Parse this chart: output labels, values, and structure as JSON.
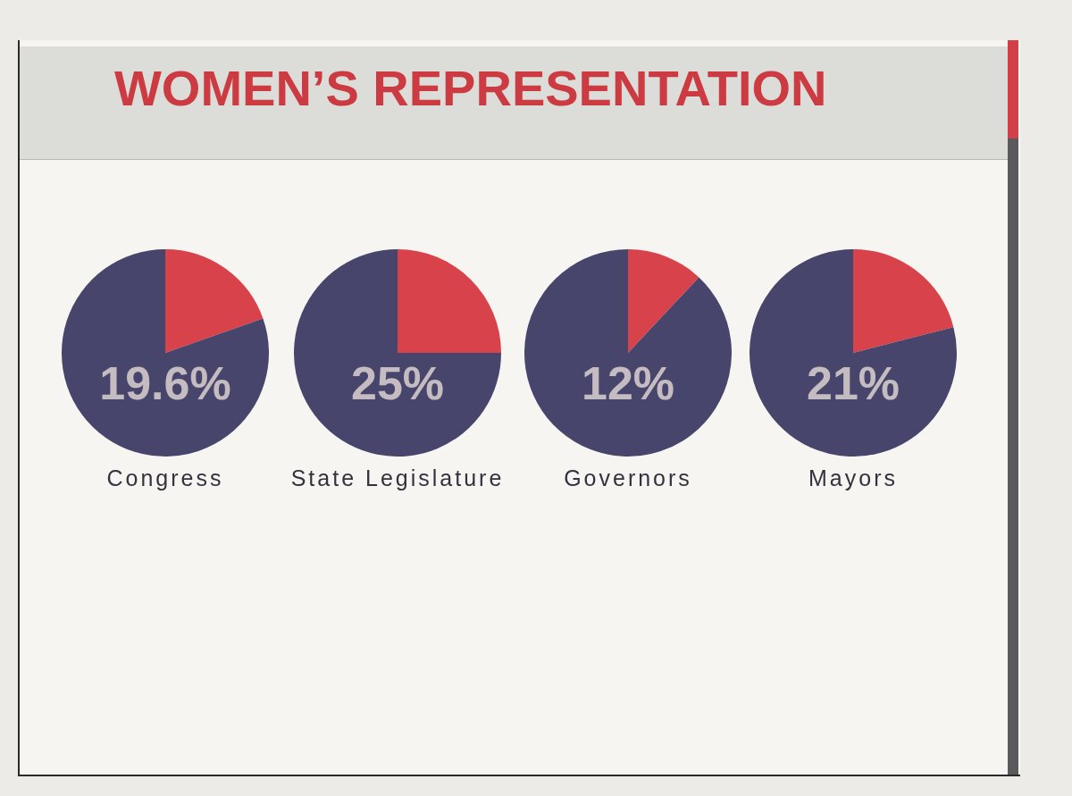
{
  "chart_data": [
    {
      "type": "pie",
      "title": "WOMEN’S REPRESENTATION",
      "xlabel": "Congress",
      "categories": [
        null,
        null
      ],
      "values": [
        19.6,
        80.4
      ],
      "colors": [
        "#d8434b",
        "#47456b"
      ],
      "annotations": [
        "19.6%"
      ]
    },
    {
      "type": "pie",
      "xlabel": "State Legislature",
      "categories": [
        null,
        null
      ],
      "values": [
        25,
        75
      ],
      "colors": [
        "#d8434b",
        "#47456b"
      ],
      "annotations": [
        "25%"
      ]
    },
    {
      "type": "pie",
      "xlabel": "Governors",
      "categories": [
        null,
        null
      ],
      "values": [
        12,
        88
      ],
      "colors": [
        "#d8434b",
        "#47456b"
      ],
      "annotations": [
        "12%"
      ]
    },
    {
      "type": "pie",
      "xlabel": "Mayors",
      "categories": [
        null,
        null
      ],
      "values": [
        21,
        79
      ],
      "colors": [
        "#d8434b",
        "#47456b"
      ],
      "annotations": [
        "21%"
      ]
    }
  ]
}
